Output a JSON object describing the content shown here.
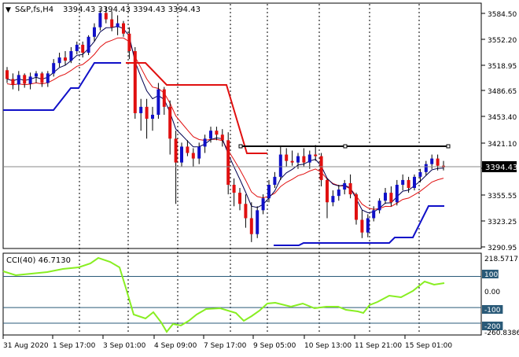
{
  "header": {
    "collapse_glyph": "▼",
    "symbol_label": "S&P,fs,H4",
    "ohlc_text": "3394.43 3394.43 3394.43 3394.43"
  },
  "indicator": {
    "label": "CCI(40) 46.7130",
    "ticks": [
      "218.5717",
      "100",
      "0.00",
      "-100",
      "-200",
      "-260.8386"
    ],
    "levels": [
      100,
      -100,
      -200
    ]
  },
  "price_axis": {
    "ticks": [
      "3584.50",
      "3552.20",
      "3518.95",
      "3486.65",
      "3453.40",
      "3421.10",
      "3388.80",
      "3355.55",
      "3323.25",
      "3290.95"
    ],
    "current_price": "3394.43"
  },
  "time_axis": {
    "labels": [
      "31 Aug 2020",
      "1 Sep 17:00",
      "3 Sep 01:00",
      "4 Sep 09:00",
      "7 Sep 17:00",
      "9 Sep 05:00",
      "10 Sep 13:00",
      "11 Sep 21:00",
      "15 Sep 01:00"
    ]
  },
  "colors": {
    "bull": "#1010c8",
    "bear": "#e01010",
    "ma_fast": "#000050",
    "ma_slow": "#e01010",
    "stop_red": "#e01010",
    "stop_blue": "#1010c8",
    "cci": "#88ee22",
    "level_line": "#2a5a78"
  },
  "chart_data": {
    "type": "candlestick",
    "candles": [
      [
        3516,
        3520,
        3500,
        3505
      ],
      [
        3505,
        3512,
        3492,
        3498
      ],
      [
        3498,
        3515,
        3490,
        3510
      ],
      [
        3510,
        3512,
        3494,
        3499
      ],
      [
        3499,
        3513,
        3492,
        3508
      ],
      [
        3508,
        3515,
        3500,
        3512
      ],
      [
        3512,
        3514,
        3495,
        3500
      ],
      [
        3500,
        3515,
        3495,
        3512
      ],
      [
        3512,
        3530,
        3508,
        3525
      ],
      [
        3525,
        3538,
        3520,
        3532
      ],
      [
        3532,
        3540,
        3522,
        3528
      ],
      [
        3528,
        3545,
        3525,
        3540
      ],
      [
        3540,
        3552,
        3536,
        3548
      ],
      [
        3548,
        3552,
        3532,
        3538
      ],
      [
        3538,
        3560,
        3535,
        3558
      ],
      [
        3558,
        3575,
        3552,
        3570
      ],
      [
        3570,
        3592,
        3566,
        3588
      ],
      [
        3588,
        3596,
        3575,
        3580
      ],
      [
        3580,
        3590,
        3565,
        3570
      ],
      [
        3570,
        3585,
        3560,
        3575
      ],
      [
        3575,
        3578,
        3558,
        3562
      ],
      [
        3562,
        3570,
        3530,
        3540
      ],
      [
        3540,
        3545,
        3455,
        3462
      ],
      [
        3462,
        3480,
        3440,
        3470
      ],
      [
        3470,
        3480,
        3430,
        3455
      ],
      [
        3455,
        3470,
        3440,
        3460
      ],
      [
        3460,
        3500,
        3455,
        3492
      ],
      [
        3492,
        3495,
        3460,
        3470
      ],
      [
        3470,
        3478,
        3410,
        3430
      ],
      [
        3430,
        3440,
        3348,
        3400
      ],
      [
        3400,
        3425,
        3395,
        3420
      ],
      [
        3420,
        3428,
        3408,
        3412
      ],
      [
        3412,
        3418,
        3395,
        3405
      ],
      [
        3405,
        3425,
        3398,
        3420
      ],
      [
        3420,
        3435,
        3412,
        3430
      ],
      [
        3430,
        3445,
        3425,
        3440
      ],
      [
        3440,
        3445,
        3428,
        3435
      ],
      [
        3435,
        3442,
        3420,
        3428
      ],
      [
        3428,
        3438,
        3360,
        3372
      ],
      [
        3372,
        3380,
        3345,
        3362
      ],
      [
        3362,
        3368,
        3340,
        3348
      ],
      [
        3348,
        3360,
        3318,
        3330
      ],
      [
        3330,
        3350,
        3300,
        3310
      ],
      [
        3310,
        3345,
        3305,
        3340
      ],
      [
        3340,
        3360,
        3335,
        3355
      ],
      [
        3355,
        3378,
        3350,
        3372
      ],
      [
        3372,
        3388,
        3368,
        3382
      ],
      [
        3382,
        3420,
        3378,
        3410
      ],
      [
        3410,
        3418,
        3395,
        3402
      ],
      [
        3402,
        3415,
        3396,
        3400
      ],
      [
        3400,
        3412,
        3392,
        3408
      ],
      [
        3408,
        3418,
        3395,
        3400
      ],
      [
        3400,
        3415,
        3392,
        3410
      ],
      [
        3410,
        3422,
        3402,
        3408
      ],
      [
        3408,
        3412,
        3370,
        3378
      ],
      [
        3378,
        3380,
        3330,
        3350
      ],
      [
        3350,
        3365,
        3345,
        3358
      ],
      [
        3358,
        3372,
        3352,
        3366
      ],
      [
        3366,
        3378,
        3360,
        3374
      ],
      [
        3374,
        3385,
        3355,
        3360
      ],
      [
        3360,
        3362,
        3322,
        3328
      ],
      [
        3328,
        3340,
        3305,
        3312
      ],
      [
        3312,
        3335,
        3306,
        3330
      ],
      [
        3330,
        3345,
        3326,
        3340
      ],
      [
        3340,
        3355,
        3336,
        3352
      ],
      [
        3352,
        3368,
        3348,
        3362
      ],
      [
        3362,
        3370,
        3345,
        3350
      ],
      [
        3350,
        3378,
        3346,
        3372
      ],
      [
        3372,
        3385,
        3365,
        3378
      ],
      [
        3378,
        3382,
        3362,
        3368
      ],
      [
        3368,
        3385,
        3365,
        3382
      ],
      [
        3382,
        3392,
        3375,
        3388
      ],
      [
        3388,
        3402,
        3384,
        3398
      ],
      [
        3398,
        3410,
        3392,
        3405
      ],
      [
        3405,
        3410,
        3390,
        3396
      ],
      [
        3396,
        3402,
        3390,
        3394
      ]
    ]
  }
}
